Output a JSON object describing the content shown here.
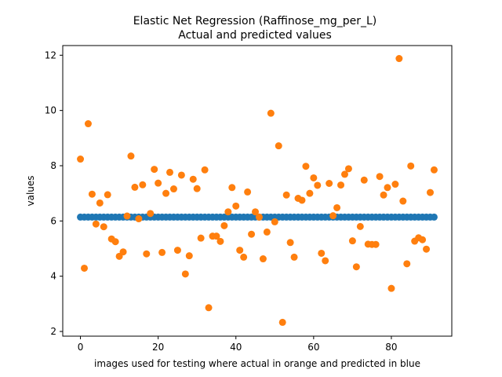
{
  "chart_data": {
    "type": "scatter",
    "title_line1": "Elastic Net Regression (Raffinose_mg_per_L)",
    "title_line2": "Actual and predicted values",
    "xlabel": "images used for testing where actual in orange and predicted in blue",
    "ylabel": "values",
    "xlim": [
      -4.55,
      95.55
    ],
    "ylim": [
      1.83,
      12.35
    ],
    "xticks": [
      0,
      20,
      40,
      60,
      80
    ],
    "yticks": [
      2,
      4,
      6,
      8,
      10,
      12
    ],
    "grid": false,
    "colors": {
      "predicted": "#1f77b4",
      "actual": "#ff7f0e"
    },
    "series": [
      {
        "role": "predicted",
        "x": [
          0,
          1,
          2,
          3,
          4,
          5,
          6,
          7,
          8,
          9,
          10,
          11,
          12,
          13,
          14,
          15,
          16,
          17,
          18,
          19,
          20,
          21,
          22,
          23,
          24,
          25,
          26,
          27,
          28,
          29,
          30,
          31,
          32,
          33,
          34,
          35,
          36,
          37,
          38,
          39,
          40,
          41,
          42,
          43,
          44,
          45,
          46,
          47,
          48,
          49,
          50,
          51,
          52,
          53,
          54,
          55,
          56,
          57,
          58,
          59,
          60,
          61,
          62,
          63,
          64,
          65,
          66,
          67,
          68,
          69,
          70,
          71,
          72,
          73,
          74,
          75,
          76,
          77,
          78,
          79,
          80,
          81,
          82,
          83,
          84,
          85,
          86,
          87,
          88,
          89,
          90,
          91
        ],
        "values": [
          6.14,
          6.14,
          6.14,
          6.14,
          6.14,
          6.14,
          6.14,
          6.14,
          6.14,
          6.14,
          6.14,
          6.14,
          6.14,
          6.14,
          6.14,
          6.14,
          6.14,
          6.14,
          6.14,
          6.14,
          6.14,
          6.14,
          6.14,
          6.14,
          6.14,
          6.14,
          6.14,
          6.14,
          6.14,
          6.14,
          6.14,
          6.14,
          6.14,
          6.14,
          6.14,
          6.14,
          6.14,
          6.14,
          6.14,
          6.14,
          6.14,
          6.14,
          6.14,
          6.14,
          6.14,
          6.14,
          6.14,
          6.14,
          6.14,
          6.14,
          6.14,
          6.14,
          6.14,
          6.14,
          6.14,
          6.14,
          6.14,
          6.14,
          6.14,
          6.14,
          6.14,
          6.14,
          6.14,
          6.14,
          6.14,
          6.14,
          6.14,
          6.14,
          6.14,
          6.14,
          6.14,
          6.14,
          6.14,
          6.14,
          6.14,
          6.14,
          6.14,
          6.14,
          6.14,
          6.14,
          6.14,
          6.14,
          6.14,
          6.14,
          6.14,
          6.14,
          6.14,
          6.14,
          6.14,
          6.14,
          6.14,
          6.14
        ]
      },
      {
        "role": "actual",
        "x": [
          0,
          1,
          2,
          3,
          4,
          5,
          6,
          7,
          8,
          9,
          10,
          11,
          12,
          13,
          14,
          15,
          16,
          17,
          18,
          19,
          20,
          21,
          22,
          23,
          24,
          25,
          26,
          27,
          28,
          29,
          30,
          31,
          32,
          33,
          34,
          35,
          36,
          37,
          38,
          39,
          40,
          41,
          42,
          43,
          44,
          45,
          46,
          47,
          48,
          49,
          50,
          51,
          52,
          53,
          54,
          55,
          56,
          57,
          58,
          59,
          60,
          61,
          62,
          63,
          64,
          65,
          66,
          67,
          68,
          69,
          70,
          71,
          72,
          73,
          74,
          75,
          76,
          77,
          78,
          79,
          80,
          81,
          82,
          83,
          84,
          85,
          86,
          87,
          88,
          89,
          90,
          91
        ],
        "values": [
          8.24,
          4.29,
          9.52,
          6.97,
          5.89,
          6.65,
          5.79,
          6.95,
          5.35,
          5.25,
          4.72,
          4.88,
          6.18,
          8.35,
          7.22,
          6.08,
          7.31,
          4.81,
          6.27,
          7.87,
          7.37,
          4.86,
          7.0,
          7.76,
          7.16,
          4.94,
          7.66,
          4.08,
          4.74,
          7.51,
          7.17,
          5.38,
          7.85,
          2.86,
          5.45,
          5.45,
          5.26,
          5.83,
          6.33,
          7.21,
          6.54,
          4.94,
          4.69,
          7.05,
          5.52,
          6.33,
          6.14,
          4.63,
          5.6,
          9.9,
          5.97,
          8.72,
          2.33,
          6.94,
          5.22,
          4.69,
          6.82,
          6.75,
          7.98,
          7.0,
          7.56,
          7.29,
          4.83,
          4.56,
          7.36,
          6.19,
          6.48,
          7.3,
          7.69,
          7.89,
          5.28,
          4.34,
          5.8,
          7.48,
          5.16,
          5.15,
          5.15,
          7.61,
          6.94,
          7.21,
          3.56,
          7.33,
          11.88,
          6.72,
          4.45,
          7.99,
          5.27,
          5.39,
          5.32,
          4.98,
          7.03,
          7.85
        ]
      }
    ]
  }
}
